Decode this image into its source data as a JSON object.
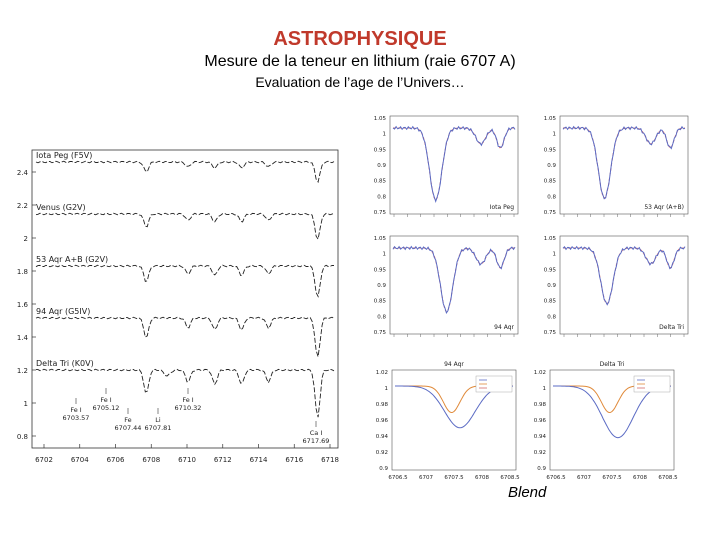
{
  "header": {
    "title": "ASTROPHYSIQUE",
    "subtitle": "Mesure de la teneur en lithium (raie 6707 A)",
    "subsubtitle": "Evaluation de l’age de l’Univers…"
  },
  "blend_label": "Blend",
  "colors": {
    "title": "#c0392b",
    "observed": "#5b6bc4",
    "model": "#d26a6a",
    "model2": "#e08a3a"
  },
  "chart_data": [
    {
      "id": "left-stacked",
      "type": "line",
      "title": "",
      "xlabel": "",
      "ylabel": "",
      "x_ticks": [
        "6702",
        "6704",
        "6706",
        "6708",
        "6710",
        "6712",
        "6714",
        "6716",
        "6718"
      ],
      "y_ticks": [
        "2.4",
        "2.2",
        "2",
        "1.8",
        "1.6",
        "1.4",
        "1.2",
        "1",
        "0.8"
      ],
      "series": [
        {
          "name": "Iota Peg (F5V)"
        },
        {
          "name": "Venus (G2V)"
        },
        {
          "name": "53 Aqr A+B (G2V)"
        },
        {
          "name": "94 Aqr (G5IV)"
        },
        {
          "name": "Delta Tri (K0V)"
        }
      ],
      "annotations": [
        {
          "label": "Fe I",
          "value": "6703.57"
        },
        {
          "label": "Fe I",
          "value": "6705.12"
        },
        {
          "label": "Fe",
          "value": "6707.44"
        },
        {
          "label": "Li",
          "value": "6707.81"
        },
        {
          "label": "Fe I",
          "value": "6710.32"
        },
        {
          "label": "Ca I",
          "value": "6717.69"
        }
      ]
    },
    {
      "id": "p1",
      "type": "line",
      "legend": "Iota Peg",
      "y_ticks": [
        "1.05",
        "1",
        "0.95",
        "0.9",
        "0.85",
        "0.8",
        "0.75"
      ]
    },
    {
      "id": "p2",
      "type": "line",
      "legend": "53 Aqr (A+B)",
      "y_ticks": [
        "1.05",
        "1",
        "0.95",
        "0.9",
        "0.85",
        "0.8",
        "0.75"
      ]
    },
    {
      "id": "p3",
      "type": "line",
      "legend": "94 Aqr",
      "y_ticks": [
        "1.05",
        "1",
        "0.95",
        "0.9",
        "0.85",
        "0.8",
        "0.75"
      ]
    },
    {
      "id": "p4",
      "type": "line",
      "legend": "Delta Tri",
      "y_ticks": [
        "1.05",
        "1",
        "0.95",
        "0.9",
        "0.85",
        "0.8",
        "0.75"
      ]
    },
    {
      "id": "b1",
      "type": "line",
      "title": "94 Aqr",
      "y_ticks": [
        "1.02",
        "1",
        "0.98",
        "0.96",
        "0.94",
        "0.92",
        "0.9"
      ],
      "x_ticks": [
        "6706.5",
        "6707",
        "6707.5",
        "6708",
        "6708.5"
      ]
    },
    {
      "id": "b2",
      "type": "line",
      "title": "Delta Tri",
      "y_ticks": [
        "1.02",
        "1",
        "0.98",
        "0.96",
        "0.94",
        "0.92",
        "0.9"
      ],
      "x_ticks": [
        "6706.5",
        "6707",
        "6707.5",
        "6708",
        "6708.5"
      ]
    }
  ]
}
